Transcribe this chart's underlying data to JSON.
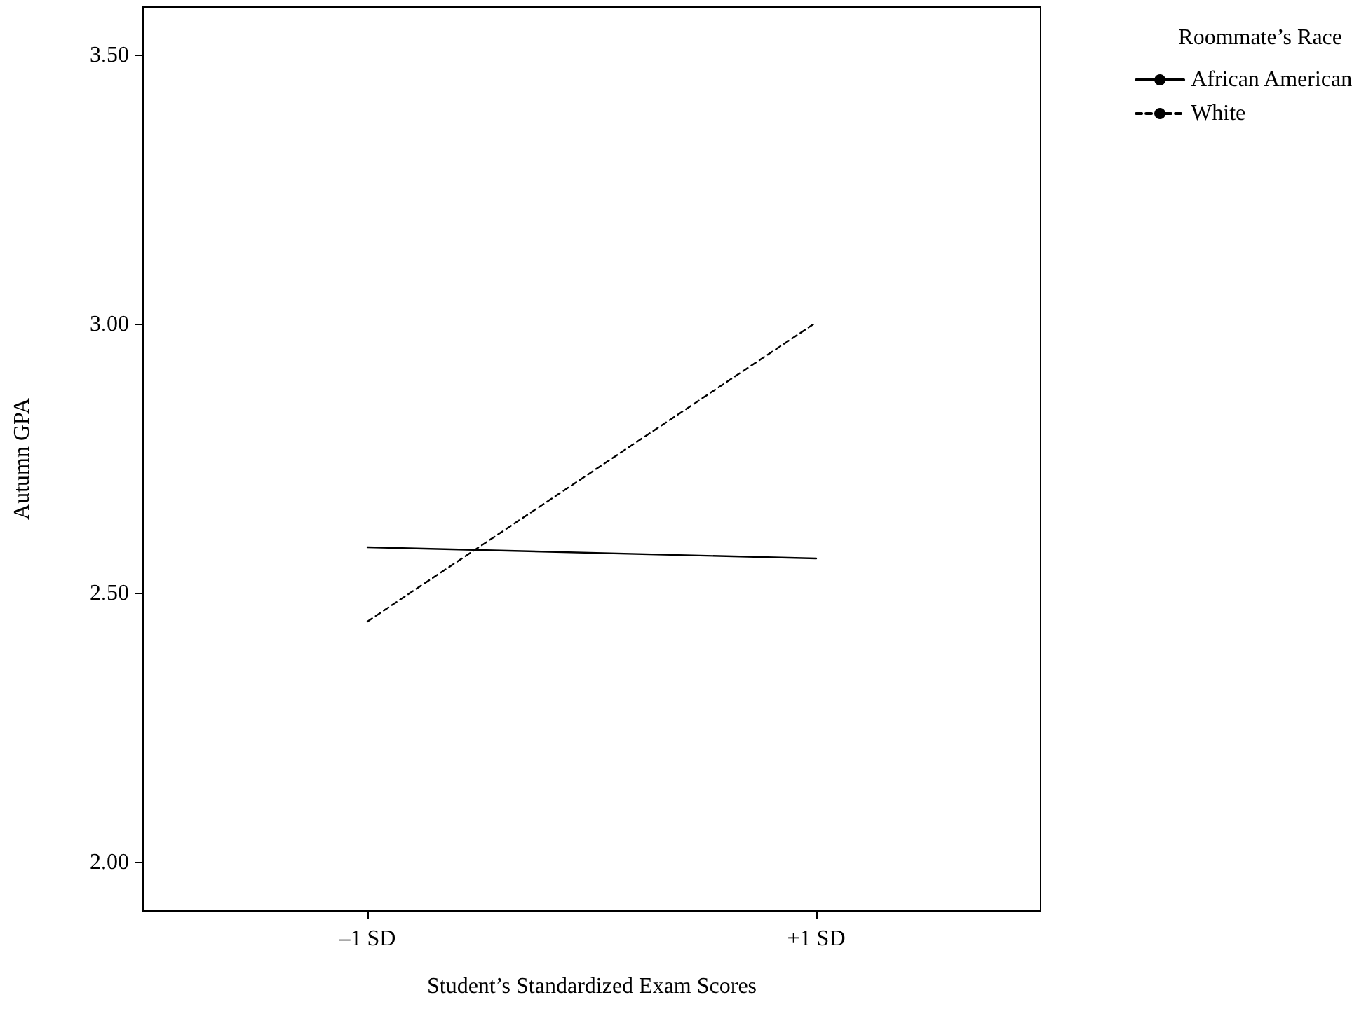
{
  "chart_data": {
    "type": "line",
    "xlabel": "Student’s Standardized Exam Scores",
    "ylabel": "Autumn GPA",
    "legend_title": "Roommate’s Race",
    "categories": [
      "–1 SD",
      "+1 SD"
    ],
    "series": [
      {
        "name": "African American",
        "color": "#000000",
        "line_style": "solid",
        "values": [
          2.586,
          2.565
        ]
      },
      {
        "name": "White",
        "color": "#000000",
        "line_style": "dashed",
        "values": [
          2.448,
          3.004
        ]
      }
    ],
    "ylim": [
      1.91,
      3.59
    ],
    "yticks": [
      {
        "value": 2,
        "label": "2.00"
      },
      {
        "value": 2.5,
        "label": "2.50"
      },
      {
        "value": 3,
        "label": "3.00"
      },
      {
        "value": 3.5,
        "label": "3.50"
      }
    ],
    "grid": false,
    "legend": "top right",
    "marker": "none"
  }
}
